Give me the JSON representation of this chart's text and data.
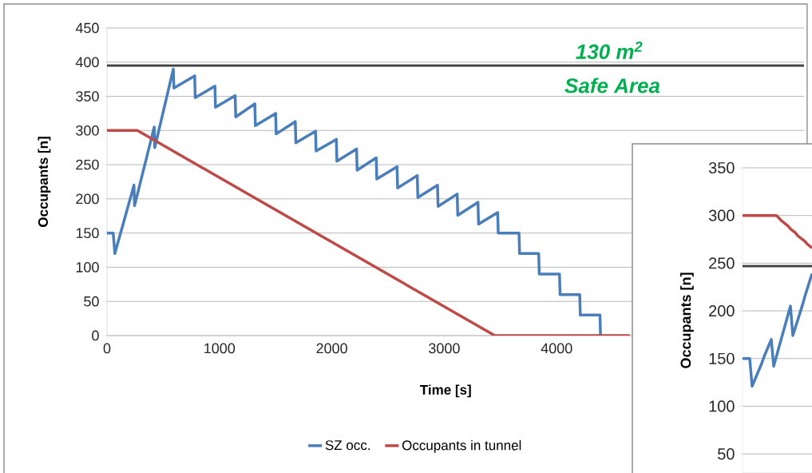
{
  "chart_data": [
    {
      "type": "line",
      "xlabel": "Time [s]",
      "ylabel": "Occupants [n]",
      "annotations": [
        "130 m$^{2}$",
        "Safe Area"
      ],
      "xlim": [
        0,
        6200
      ],
      "xticks": [
        0,
        1000,
        2000,
        3000,
        4000
      ],
      "ylim": [
        0,
        450
      ],
      "yticks": [
        0,
        50,
        100,
        150,
        200,
        250,
        300,
        350,
        400,
        450
      ],
      "grid": "y",
      "legend": "bottom",
      "ref_lines": [
        {
          "axis": "y",
          "value": 395,
          "color": "#404040"
        }
      ],
      "series": [
        {
          "name": "SZ occ.",
          "color": "#4a7ebb",
          "x": [
            0,
            55,
            70,
            240,
            245,
            420,
            425,
            590,
            595,
            780,
            785,
            960,
            965,
            1140,
            1145,
            1315,
            1320,
            1500,
            1505,
            1675,
            1680,
            1855,
            1860,
            2040,
            2045,
            2220,
            2225,
            2395,
            2400,
            2580,
            2585,
            2760,
            2765,
            2940,
            2945,
            3115,
            3120,
            3300,
            3305,
            3475,
            3480,
            3665,
            3670,
            3840,
            3845,
            4025,
            4030,
            4205,
            4210,
            4385,
            4390
          ],
          "values": [
            150,
            150,
            120,
            220,
            190,
            305,
            275,
            390,
            362,
            380,
            348,
            365,
            334,
            351,
            320,
            339,
            307,
            325,
            295,
            313,
            282,
            299,
            270,
            287,
            255,
            273,
            242,
            260,
            229,
            247,
            216,
            234,
            202,
            220,
            189,
            207,
            176,
            195,
            163,
            180,
            150,
            150,
            120,
            120,
            90,
            90,
            60,
            60,
            30,
            30,
            0
          ]
        },
        {
          "name": "Occupants in tunnel",
          "color": "#be4b48",
          "x": [
            0,
            270,
            3450,
            4650
          ],
          "values": [
            300,
            300,
            0,
            0
          ]
        }
      ]
    },
    {
      "type": "line",
      "ylabel": "Occupants [n]",
      "categories": [
        null,
        null,
        null,
        null,
        null,
        null,
        null,
        null,
        null,
        null,
        null,
        null,
        null,
        null,
        null,
        null,
        null,
        null,
        null,
        null,
        null,
        null,
        null,
        null,
        null,
        null,
        null,
        null,
        null,
        null
      ],
      "ylim": [
        30,
        350
      ],
      "yticks": [
        50,
        100,
        150,
        200,
        250,
        300,
        350
      ],
      "grid": "y",
      "tick_labels": "y",
      "ref_lines": [
        {
          "axis": "y",
          "value": 247,
          "color": "#404040"
        }
      ],
      "series": [
        {
          "color": "#4a7ebb",
          "values": [
            150,
            150,
            150,
            150,
            121,
            127,
            133,
            139,
            145,
            152,
            158,
            164,
            170,
            142,
            151,
            160,
            169,
            178,
            187,
            196,
            205,
            174,
            182,
            190,
            198,
            206,
            215,
            223,
            231,
            239
          ]
        },
        {
          "color": "#be4b48",
          "values": [
            300,
            300,
            300,
            300,
            300,
            300,
            300,
            300,
            300,
            300,
            300,
            300,
            300,
            300,
            300,
            298,
            295,
            293,
            291,
            289,
            286,
            284,
            282,
            279,
            277,
            275,
            273,
            270,
            268,
            266
          ]
        }
      ]
    }
  ]
}
